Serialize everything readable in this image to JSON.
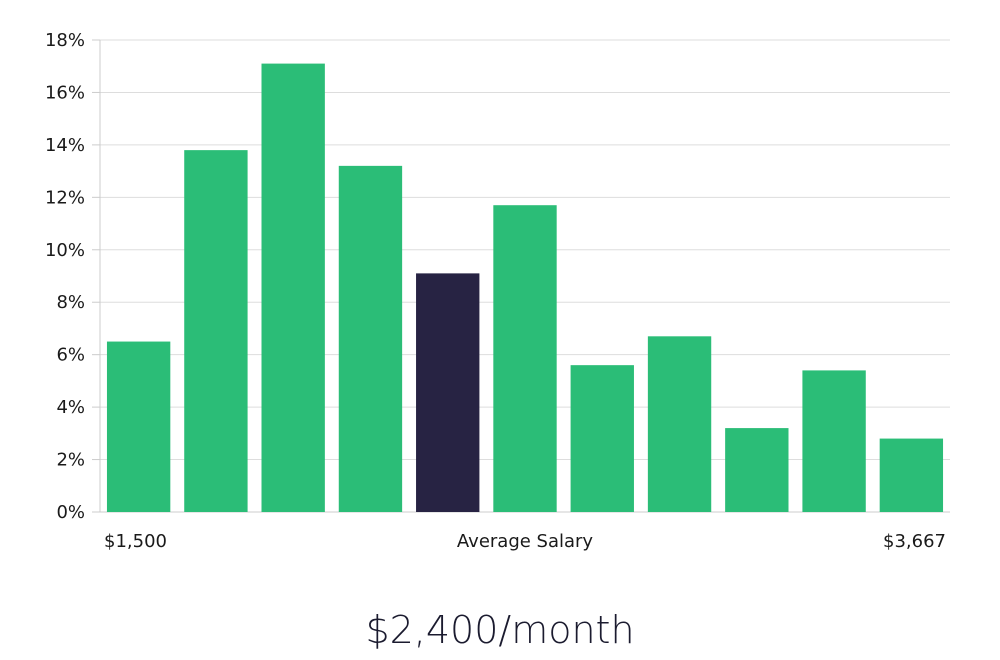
{
  "chart_data": {
    "type": "bar",
    "values": [
      6.5,
      13.8,
      17.1,
      13.2,
      9.1,
      11.7,
      5.6,
      6.7,
      3.2,
      5.4,
      2.8
    ],
    "highlight_index": 4,
    "ylim": [
      0,
      18
    ],
    "yticks": [
      0,
      2,
      4,
      6,
      8,
      10,
      12,
      14,
      16,
      18
    ],
    "ytick_suffix": "%",
    "grid": "horizontal",
    "x_left_label": "$1,500",
    "x_center_label": "Average Salary",
    "x_right_label": "$3,667",
    "colors": {
      "bar": "#2bbd77",
      "highlight": "#272343",
      "grid": "#dddddd",
      "axis": "#cccccc"
    }
  },
  "headline": "$2,400/month"
}
